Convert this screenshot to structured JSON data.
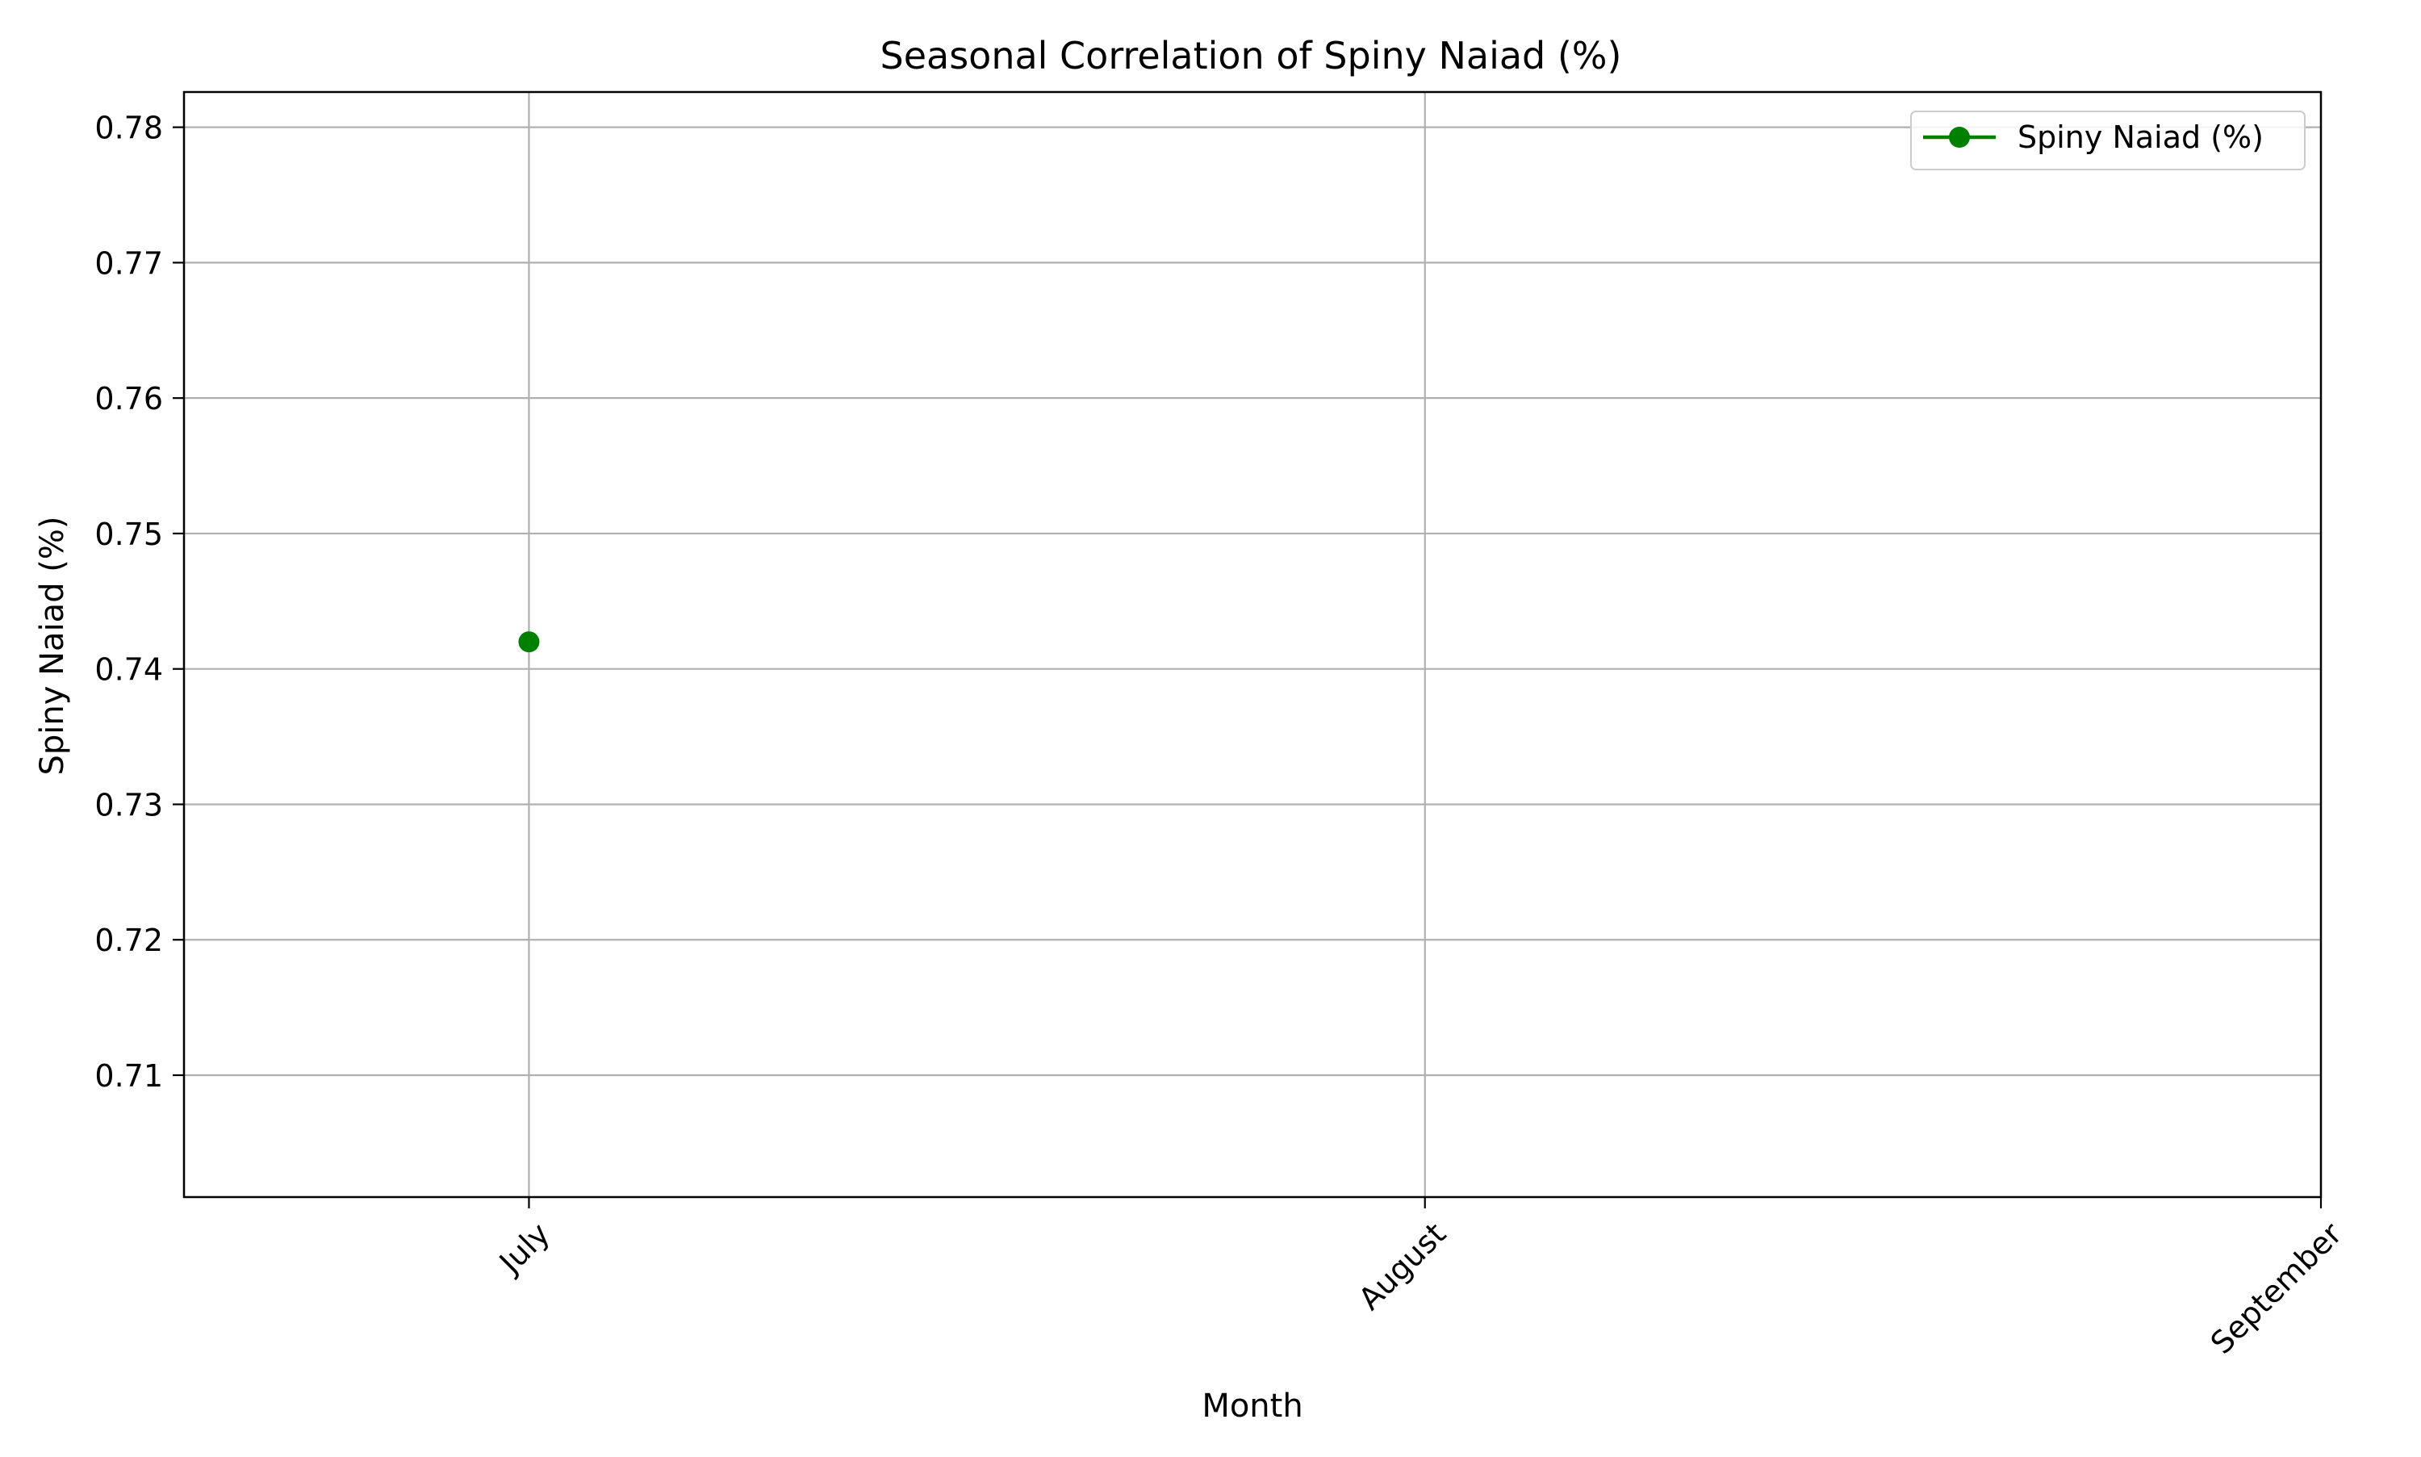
{
  "chart_data": {
    "type": "line",
    "title": "Seasonal Correlation of Spiny Naiad (%)",
    "xlabel": "Month",
    "ylabel": "Spiny Naiad (%)",
    "categories": [
      "July",
      "August",
      "September"
    ],
    "series": [
      {
        "name": "Spiny Naiad (%)",
        "values": [
          0.742,
          null,
          null
        ],
        "color": "#008000",
        "marker": "circle"
      }
    ],
    "ylim": [
      0.701,
      0.7826
    ],
    "xlim": [
      -0.385,
      2.0
    ],
    "yticks": [
      0.71,
      0.72,
      0.73,
      0.74,
      0.75,
      0.76,
      0.77,
      0.78
    ],
    "ytick_labels": [
      "0.71",
      "0.72",
      "0.73",
      "0.74",
      "0.75",
      "0.76",
      "0.77",
      "0.78"
    ],
    "grid": true,
    "legend_position": "top-right",
    "xtick_rotation_deg": 45
  }
}
